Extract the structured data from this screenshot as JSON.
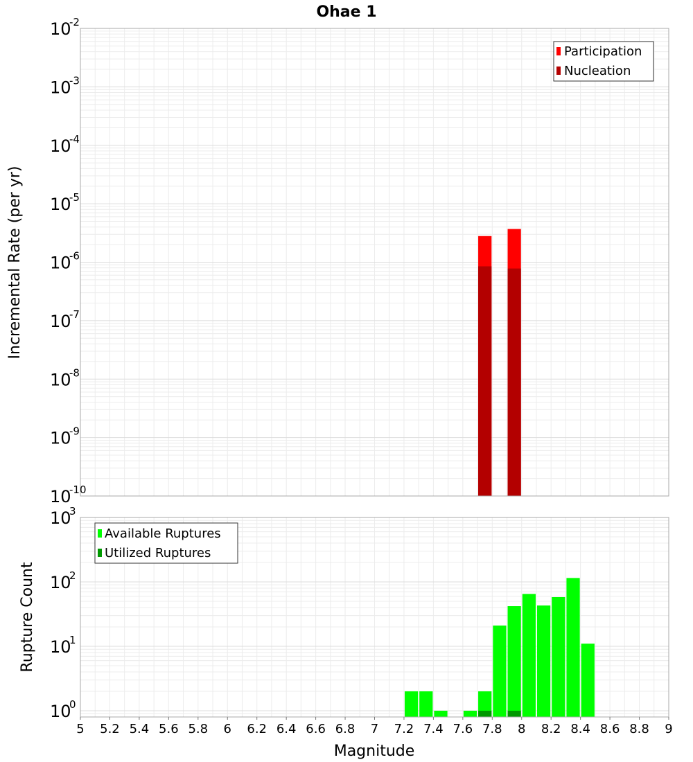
{
  "chart_data": [
    {
      "type": "bar",
      "title": "Ohae 1",
      "xlabel": "Magnitude",
      "ylabel": "Incremental Rate (per yr)",
      "yscale": "log",
      "ylim": [
        1e-10,
        0.01
      ],
      "xlim": [
        5,
        9
      ],
      "bin_width": 0.1,
      "y_ticks": [
        {
          "base": "10",
          "exp": "-10",
          "value": 1e-10
        },
        {
          "base": "10",
          "exp": "-9",
          "value": 1e-09
        },
        {
          "base": "10",
          "exp": "-8",
          "value": 1e-08
        },
        {
          "base": "10",
          "exp": "-7",
          "value": 1e-07
        },
        {
          "base": "10",
          "exp": "-6",
          "value": 1e-06
        },
        {
          "base": "10",
          "exp": "-5",
          "value": 1e-05
        },
        {
          "base": "10",
          "exp": "-4",
          "value": 0.0001
        },
        {
          "base": "10",
          "exp": "-3",
          "value": 0.001
        },
        {
          "base": "10",
          "exp": "-2",
          "value": 0.01
        }
      ],
      "legend": {
        "position": "top-right"
      },
      "series": [
        {
          "name": "Participation",
          "color": "#ff0000",
          "x": [
            7.75,
            7.95
          ],
          "values": [
            2.8e-06,
            3.7e-06
          ]
        },
        {
          "name": "Nucleation",
          "color": "#b30000",
          "x": [
            7.75,
            7.95
          ],
          "values": [
            8.5e-07,
            7.8e-07
          ]
        }
      ],
      "grid": true
    },
    {
      "type": "bar",
      "xlabel": "Magnitude",
      "ylabel": "Rupture Count",
      "yscale": "log",
      "ylim": [
        0.8,
        1000
      ],
      "xlim": [
        5,
        9
      ],
      "bin_width": 0.1,
      "y_ticks": [
        {
          "base": "10",
          "exp": "0",
          "value": 1
        },
        {
          "base": "10",
          "exp": "1",
          "value": 10
        },
        {
          "base": "10",
          "exp": "2",
          "value": 100
        },
        {
          "base": "10",
          "exp": "3",
          "value": 1000
        }
      ],
      "legend": {
        "position": "top-left"
      },
      "series": [
        {
          "name": "Available Ruptures",
          "color": "#00ff00",
          "x": [
            7.25,
            7.35,
            7.45,
            7.65,
            7.75,
            7.85,
            7.95,
            8.05,
            8.15,
            8.25,
            8.35,
            8.45
          ],
          "values": [
            2,
            2,
            1,
            1,
            2,
            21,
            42,
            65,
            43,
            58,
            115,
            11
          ]
        },
        {
          "name": "Utilized Ruptures",
          "color": "#009900",
          "x": [
            7.75,
            7.95
          ],
          "values": [
            1,
            1
          ]
        }
      ],
      "grid": true
    }
  ],
  "x_ticks": [
    "5",
    "5.2",
    "5.4",
    "5.6",
    "5.8",
    "6",
    "6.2",
    "6.4",
    "6.6",
    "6.8",
    "7",
    "7.2",
    "7.4",
    "7.6",
    "7.8",
    "8",
    "8.2",
    "8.4",
    "8.6",
    "8.8",
    "9"
  ]
}
